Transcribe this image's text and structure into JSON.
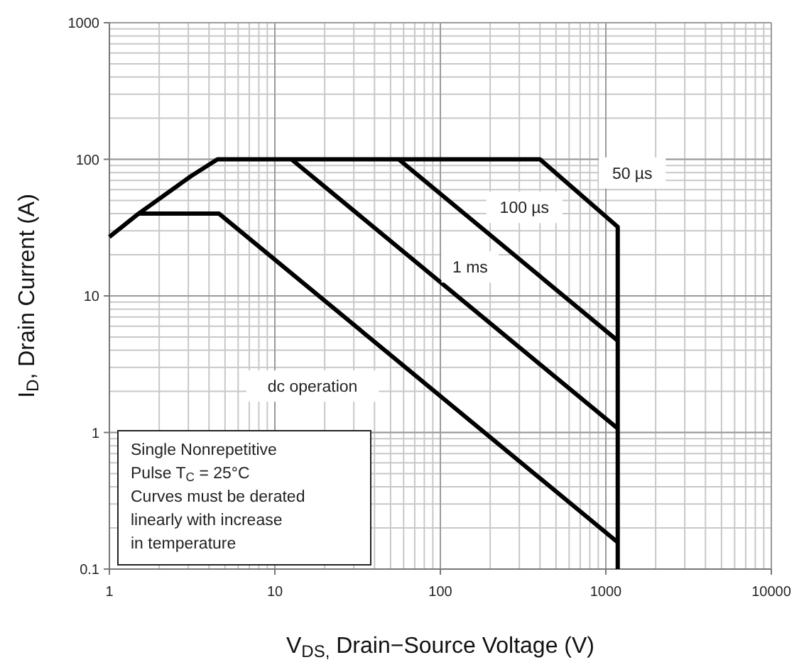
{
  "chart_data": {
    "type": "line",
    "xlabel": "V$_{DS,}$ Drain−Source Voltage (V)",
    "ylabel": "I$_{D}$, Drain Current (A)",
    "log": "xy",
    "grid": true,
    "marker": "none",
    "line_style": "solid",
    "xlim": [
      1,
      10000
    ],
    "xticks": [
      1,
      10,
      100,
      1000,
      10000
    ],
    "ylim": [
      0.1,
      1000
    ],
    "yticks": [
      0.1,
      1,
      10,
      100,
      1000
    ],
    "series": [
      {
        "name": "50 µs",
        "color": "#000000",
        "x": [
          1,
          1.5,
          3.1,
          4.5,
          400,
          1180,
          1180
        ],
        "values": [
          27,
          40,
          75,
          100,
          100,
          32,
          0.1
        ]
      },
      {
        "name": "100 µs",
        "color": "#000000",
        "x": [
          56,
          1180
        ],
        "values": [
          100,
          4.7
        ]
      },
      {
        "name": "1 ms",
        "color": "#000000",
        "x": [
          12.6,
          1180
        ],
        "values": [
          100,
          1.07
        ]
      },
      {
        "name": "dc operation",
        "color": "#000000",
        "x": [
          1.5,
          4.6,
          1180
        ],
        "values": [
          40,
          40,
          0.157
        ]
      }
    ],
    "annotations": [
      "Single Nonrepetitive\nPulse T$_{C}$ = 25°C\nCurves must be derated\nlinearly with increase\nin temperature"
    ]
  }
}
